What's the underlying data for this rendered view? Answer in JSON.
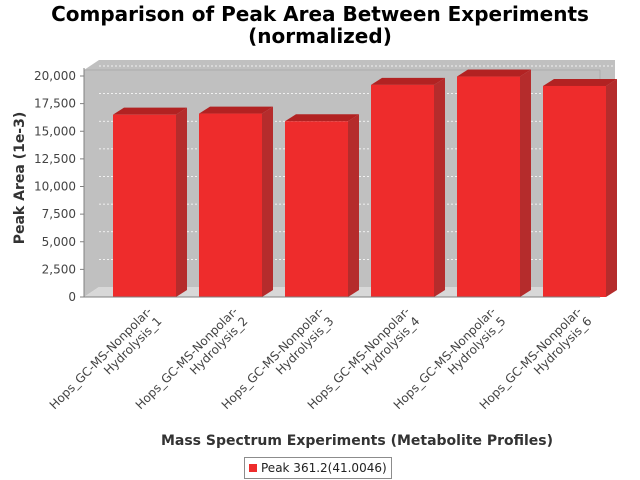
{
  "chart_data": {
    "type": "bar",
    "title": "Comparison of Peak Area Between Experiments (normalized)",
    "title_lines": [
      "Comparison of Peak Area Between Experiments",
      "(normalized)"
    ],
    "xlabel": "Mass Spectrum Experiments (Metabolite Profiles)",
    "ylabel": "Peak Area (1e-3)",
    "ylim": [
      0,
      20000
    ],
    "yticks": [
      0,
      2500,
      5000,
      7500,
      10000,
      12500,
      15000,
      17500,
      20000
    ],
    "ytick_labels": [
      "0",
      "2,500",
      "5,000",
      "7,500",
      "10,000",
      "12,500",
      "15,000",
      "17,500",
      "20,000"
    ],
    "categories": [
      [
        "Hops_GC-MS-Nonpolar-",
        "Hydrolysis_1"
      ],
      [
        "Hops_GC-MS-Nonpolar-",
        "Hydrolysis_2"
      ],
      [
        "Hops_GC-MS-Nonpolar-",
        "Hydrolysis_3"
      ],
      [
        "Hops_GC-MS-Nonpolar-",
        "Hydrolysis_4"
      ],
      [
        "Hops_GC-MS-Nonpolar-",
        "Hydrolysis_5"
      ],
      [
        "Hops_GC-MS-Nonpolar-",
        "Hydrolysis_6"
      ]
    ],
    "series": [
      {
        "name": "Peak 361.2(41.0046)",
        "values": [
          16500,
          16600,
          15900,
          19200,
          19950,
          19100
        ],
        "color": "#ee2c2c"
      }
    ],
    "grid": true,
    "legend_position": "bottom"
  }
}
